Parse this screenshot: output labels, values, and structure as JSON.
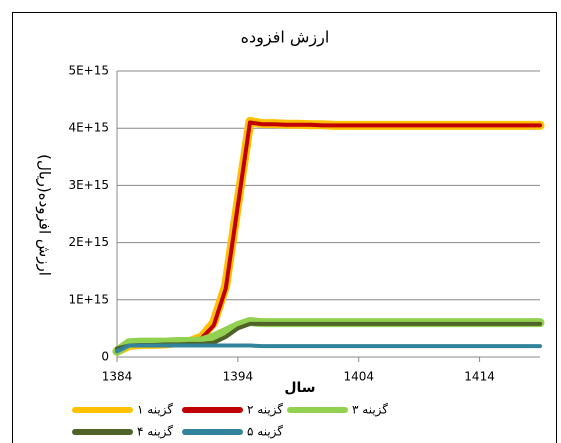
{
  "chart_data": {
    "type": "line",
    "title": "ارزش افزوده",
    "xlabel": "سال",
    "ylabel": "ارزش افزوده(ریال)",
    "x": [
      1384,
      1385,
      1386,
      1387,
      1388,
      1389,
      1390,
      1391,
      1392,
      1393,
      1394,
      1395,
      1396,
      1397,
      1398,
      1399,
      1400,
      1401,
      1402,
      1403,
      1404,
      1405,
      1406,
      1407,
      1408,
      1409,
      1410,
      1411,
      1412,
      1413,
      1414,
      1415,
      1416,
      1417,
      1418,
      1419
    ],
    "xlim": [
      1384,
      1419
    ],
    "xticks": [
      1384,
      1394,
      1404,
      1414
    ],
    "ylim": [
      0,
      5000000000000000.0
    ],
    "yticks": [
      0,
      {
        "value": 1000000000000000.0,
        "label": "1E+15"
      },
      {
        "value": 2000000000000000.0,
        "label": "2E+15"
      },
      {
        "value": 3000000000000000.0,
        "label": "3E+15"
      },
      {
        "value": 4000000000000000.0,
        "label": "4E+15"
      },
      {
        "value": 5000000000000000.0,
        "label": "5E+15"
      }
    ],
    "grid": true,
    "legend": "bottom",
    "series": [
      {
        "name": "گزینه ۱",
        "color": "#ffc000",
        "values": [
          100000000000000.0,
          200000000000000.0,
          220000000000000.0,
          220000000000000.0,
          230000000000000.0,
          250000000000000.0,
          270000000000000.0,
          350000000000000.0,
          600000000000000.0,
          1250000000000000.0,
          2700000000000000.0,
          4120000000000000.0,
          4080000000000000.0,
          4080000000000000.0,
          4070000000000000.0,
          4070000000000000.0,
          4060000000000000.0,
          4060000000000000.0,
          4050000000000000.0,
          4050000000000000.0,
          4050000000000000.0,
          4050000000000000.0,
          4050000000000000.0,
          4050000000000000.0,
          4050000000000000.0,
          4050000000000000.0,
          4050000000000000.0,
          4050000000000000.0,
          4050000000000000.0,
          4050000000000000.0,
          4050000000000000.0,
          4050000000000000.0,
          4050000000000000.0,
          4050000000000000.0,
          4050000000000000.0,
          4050000000000000.0
        ]
      },
      {
        "name": "گزینه ۲",
        "color": "#c00000",
        "values": [
          100000000000000.0,
          200000000000000.0,
          220000000000000.0,
          220000000000000.0,
          230000000000000.0,
          250000000000000.0,
          270000000000000.0,
          330000000000000.0,
          550000000000000.0,
          1200000000000000.0,
          2650000000000000.0,
          4100000000000000.0,
          4070000000000000.0,
          4070000000000000.0,
          4060000000000000.0,
          4060000000000000.0,
          4060000000000000.0,
          4050000000000000.0,
          4050000000000000.0,
          4050000000000000.0,
          4050000000000000.0,
          4050000000000000.0,
          4050000000000000.0,
          4050000000000000.0,
          4050000000000000.0,
          4050000000000000.0,
          4050000000000000.0,
          4050000000000000.0,
          4050000000000000.0,
          4050000000000000.0,
          4050000000000000.0,
          4050000000000000.0,
          4050000000000000.0,
          4050000000000000.0,
          4050000000000000.0,
          4050000000000000.0
        ]
      },
      {
        "name": "گزینه ۳",
        "color": "#92d050",
        "values": [
          100000000000000.0,
          250000000000000.0,
          260000000000000.0,
          260000000000000.0,
          260000000000000.0,
          270000000000000.0,
          270000000000000.0,
          280000000000000.0,
          350000000000000.0,
          450000000000000.0,
          550000000000000.0,
          620000000000000.0,
          600000000000000.0,
          600000000000000.0,
          600000000000000.0,
          600000000000000.0,
          600000000000000.0,
          600000000000000.0,
          600000000000000.0,
          600000000000000.0,
          600000000000000.0,
          600000000000000.0,
          600000000000000.0,
          600000000000000.0,
          600000000000000.0,
          600000000000000.0,
          600000000000000.0,
          600000000000000.0,
          600000000000000.0,
          600000000000000.0,
          600000000000000.0,
          600000000000000.0,
          600000000000000.0,
          600000000000000.0,
          600000000000000.0,
          600000000000000.0
        ]
      },
      {
        "name": "گزینه ۴",
        "color": "#4f6228",
        "values": [
          150000000000000.0,
          200000000000000.0,
          210000000000000.0,
          210000000000000.0,
          220000000000000.0,
          220000000000000.0,
          230000000000000.0,
          230000000000000.0,
          250000000000000.0,
          350000000000000.0,
          500000000000000.0,
          580000000000000.0,
          580000000000000.0,
          580000000000000.0,
          580000000000000.0,
          580000000000000.0,
          580000000000000.0,
          580000000000000.0,
          580000000000000.0,
          580000000000000.0,
          580000000000000.0,
          580000000000000.0,
          580000000000000.0,
          580000000000000.0,
          580000000000000.0,
          580000000000000.0,
          580000000000000.0,
          580000000000000.0,
          580000000000000.0,
          580000000000000.0,
          580000000000000.0,
          580000000000000.0,
          580000000000000.0,
          580000000000000.0,
          580000000000000.0,
          580000000000000.0
        ]
      },
      {
        "name": "گزینه ۵",
        "color": "#31849b",
        "values": [
          100000000000000.0,
          200000000000000.0,
          200000000000000.0,
          200000000000000.0,
          200000000000000.0,
          200000000000000.0,
          200000000000000.0,
          200000000000000.0,
          200000000000000.0,
          200000000000000.0,
          200000000000000.0,
          200000000000000.0,
          190000000000000.0,
          190000000000000.0,
          190000000000000.0,
          190000000000000.0,
          190000000000000.0,
          190000000000000.0,
          190000000000000.0,
          190000000000000.0,
          190000000000000.0,
          190000000000000.0,
          190000000000000.0,
          190000000000000.0,
          190000000000000.0,
          190000000000000.0,
          190000000000000.0,
          190000000000000.0,
          190000000000000.0,
          190000000000000.0,
          190000000000000.0,
          190000000000000.0,
          190000000000000.0,
          190000000000000.0,
          190000000000000.0,
          190000000000000.0
        ]
      }
    ]
  }
}
